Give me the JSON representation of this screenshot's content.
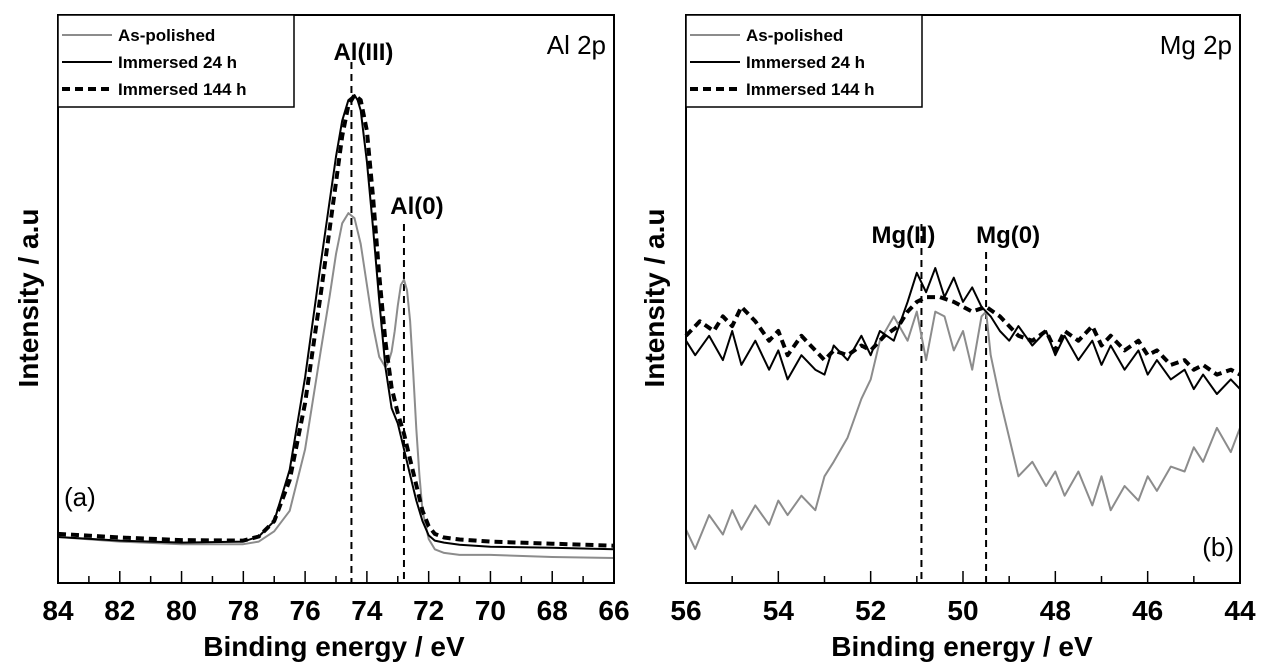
{
  "chart_data": [
    {
      "type": "line",
      "panel_label": "(a)",
      "title": "Al 2p",
      "xlabel": "Binding energy / eV",
      "ylabel": "Intensity / a.u",
      "xlim": [
        84,
        66
      ],
      "x_reversed": true,
      "ylim": [
        0,
        1
      ],
      "x_ticks": [
        84,
        82,
        80,
        78,
        76,
        74,
        72,
        70,
        68,
        66
      ],
      "x_minor_step": 1,
      "y_ticks_labeled": false,
      "grid": false,
      "legend_position": "top-left",
      "legend": [
        "As-polished",
        "Immersed 24 h",
        "Immersed 144 h"
      ],
      "reference_lines": [
        {
          "label": "Al(III)",
          "x": 74.5
        },
        {
          "label": "Al(0)",
          "x": 72.8
        }
      ],
      "series": [
        {
          "name": "As-polished",
          "style": "solid",
          "color": "#8c8c8c",
          "x": [
            84,
            82,
            80,
            78,
            77.5,
            77,
            76.5,
            76,
            75.5,
            75.2,
            75,
            74.8,
            74.6,
            74.4,
            74.2,
            74,
            73.8,
            73.6,
            73.4,
            73.3,
            73.2,
            73.1,
            73,
            72.9,
            72.8,
            72.7,
            72.6,
            72.5,
            72.4,
            72.3,
            72.2,
            72,
            71.8,
            71.5,
            71,
            70,
            68,
            66
          ],
          "y": [
            0.069,
            0.06,
            0.055,
            0.055,
            0.06,
            0.08,
            0.12,
            0.24,
            0.43,
            0.54,
            0.62,
            0.68,
            0.7,
            0.69,
            0.64,
            0.56,
            0.48,
            0.42,
            0.4,
            0.41,
            0.43,
            0.47,
            0.52,
            0.56,
            0.57,
            0.55,
            0.49,
            0.39,
            0.28,
            0.19,
            0.12,
            0.065,
            0.045,
            0.038,
            0.034,
            0.034,
            0.03,
            0.028
          ]
        },
        {
          "name": "Immersed 24 h",
          "style": "solid",
          "color": "#000000",
          "x": [
            84,
            82,
            80,
            78,
            77.5,
            77,
            76.5,
            76,
            75.5,
            75,
            74.8,
            74.6,
            74.4,
            74.3,
            74.2,
            74,
            73.8,
            73.6,
            73.4,
            73.2,
            73,
            72.8,
            72.6,
            72.4,
            72.2,
            72,
            71.8,
            71.5,
            71,
            70,
            68,
            66
          ],
          "y": [
            0.069,
            0.062,
            0.058,
            0.06,
            0.07,
            0.1,
            0.2,
            0.38,
            0.6,
            0.81,
            0.88,
            0.92,
            0.93,
            0.92,
            0.9,
            0.8,
            0.67,
            0.53,
            0.4,
            0.32,
            0.29,
            0.24,
            0.19,
            0.14,
            0.1,
            0.072,
            0.062,
            0.058,
            0.054,
            0.05,
            0.048,
            0.045
          ]
        },
        {
          "name": "Immersed 144 h",
          "style": "dashed",
          "color": "#000000",
          "x": [
            84,
            82,
            80,
            78,
            77.5,
            77,
            76.5,
            76,
            75.5,
            75,
            74.8,
            74.6,
            74.4,
            74.2,
            74,
            73.8,
            73.6,
            73.4,
            73.2,
            73,
            72.8,
            72.6,
            72.4,
            72.2,
            72,
            71.8,
            71.5,
            71,
            70,
            68,
            66
          ],
          "y": [
            0.075,
            0.068,
            0.063,
            0.062,
            0.07,
            0.1,
            0.18,
            0.33,
            0.54,
            0.76,
            0.85,
            0.91,
            0.93,
            0.92,
            0.86,
            0.73,
            0.58,
            0.45,
            0.36,
            0.31,
            0.27,
            0.22,
            0.17,
            0.12,
            0.09,
            0.075,
            0.068,
            0.064,
            0.06,
            0.056,
            0.052
          ]
        }
      ]
    },
    {
      "type": "line",
      "panel_label": "(b)",
      "title": "Mg 2p",
      "xlabel": "Binding energy / eV",
      "ylabel": "Intensity / a.u",
      "xlim": [
        56,
        44
      ],
      "x_reversed": true,
      "ylim": [
        0,
        1
      ],
      "x_ticks": [
        56,
        54,
        52,
        50,
        48,
        46,
        44
      ],
      "x_minor_step": 1,
      "y_ticks_labeled": false,
      "grid": false,
      "legend_position": "top-left",
      "legend": [
        "As-polished",
        "Immersed 24 h",
        "Immersed 144 h"
      ],
      "reference_lines": [
        {
          "label": "Mg(II)",
          "x": 50.9
        },
        {
          "label": "Mg(0)",
          "x": 49.5
        }
      ],
      "series": [
        {
          "name": "As-polished",
          "style": "solid",
          "color": "#8c8c8c",
          "x": [
            56,
            55.8,
            55.5,
            55.2,
            55,
            54.8,
            54.5,
            54.2,
            54,
            53.8,
            53.5,
            53.2,
            53,
            52.8,
            52.5,
            52.2,
            52,
            51.8,
            51.5,
            51.2,
            51,
            50.8,
            50.6,
            50.4,
            50.2,
            50,
            49.8,
            49.6,
            49.5,
            49.4,
            49.2,
            49,
            48.8,
            48.5,
            48.2,
            48,
            47.8,
            47.5,
            47.2,
            47,
            46.8,
            46.5,
            46.2,
            46,
            45.8,
            45.5,
            45.2,
            45,
            44.8,
            44.5,
            44.2,
            44
          ],
          "y": [
            0.11,
            0.07,
            0.14,
            0.1,
            0.15,
            0.11,
            0.16,
            0.12,
            0.17,
            0.14,
            0.18,
            0.15,
            0.22,
            0.25,
            0.3,
            0.38,
            0.42,
            0.5,
            0.55,
            0.5,
            0.56,
            0.46,
            0.56,
            0.55,
            0.48,
            0.52,
            0.44,
            0.55,
            0.56,
            0.47,
            0.38,
            0.3,
            0.22,
            0.25,
            0.2,
            0.23,
            0.18,
            0.23,
            0.16,
            0.22,
            0.15,
            0.2,
            0.17,
            0.22,
            0.19,
            0.24,
            0.23,
            0.28,
            0.25,
            0.32,
            0.27,
            0.32
          ]
        },
        {
          "name": "Immersed 24 h",
          "style": "solid",
          "color": "#000000",
          "x": [
            56,
            55.8,
            55.5,
            55.2,
            55,
            54.8,
            54.5,
            54.2,
            54,
            53.8,
            53.5,
            53.2,
            53,
            52.8,
            52.5,
            52.2,
            52,
            51.8,
            51.5,
            51.2,
            51,
            50.8,
            50.6,
            50.4,
            50.2,
            50,
            49.8,
            49.6,
            49.4,
            49.2,
            49,
            48.8,
            48.5,
            48.2,
            48,
            47.8,
            47.5,
            47.2,
            47,
            46.8,
            46.5,
            46.2,
            46,
            45.8,
            45.5,
            45.2,
            45,
            44.8,
            44.5,
            44.2,
            44
          ],
          "y": [
            0.5,
            0.47,
            0.51,
            0.46,
            0.52,
            0.45,
            0.5,
            0.44,
            0.48,
            0.42,
            0.47,
            0.44,
            0.43,
            0.49,
            0.46,
            0.51,
            0.47,
            0.52,
            0.5,
            0.58,
            0.64,
            0.6,
            0.65,
            0.59,
            0.63,
            0.58,
            0.61,
            0.57,
            0.55,
            0.52,
            0.5,
            0.53,
            0.49,
            0.52,
            0.47,
            0.51,
            0.46,
            0.5,
            0.45,
            0.49,
            0.44,
            0.48,
            0.43,
            0.46,
            0.42,
            0.44,
            0.4,
            0.43,
            0.39,
            0.42,
            0.4
          ]
        },
        {
          "name": "Immersed 144 h",
          "style": "dashed",
          "color": "#000000",
          "x": [
            56,
            55.7,
            55.4,
            55.2,
            55,
            54.8,
            54.5,
            54.2,
            54,
            53.8,
            53.5,
            53.2,
            53,
            52.8,
            52.5,
            52.2,
            52,
            51.7,
            51.4,
            51.2,
            51,
            50.8,
            50.5,
            50.2,
            50,
            49.8,
            49.5,
            49.2,
            49,
            48.8,
            48.5,
            48.2,
            48,
            47.8,
            47.5,
            47.2,
            47,
            46.8,
            46.5,
            46.2,
            46,
            45.8,
            45.5,
            45.2,
            45,
            44.8,
            44.5,
            44.2,
            44
          ],
          "y": [
            0.51,
            0.54,
            0.52,
            0.55,
            0.53,
            0.57,
            0.54,
            0.5,
            0.52,
            0.47,
            0.51,
            0.48,
            0.46,
            0.48,
            0.47,
            0.49,
            0.48,
            0.51,
            0.53,
            0.56,
            0.58,
            0.59,
            0.59,
            0.58,
            0.57,
            0.56,
            0.57,
            0.55,
            0.53,
            0.51,
            0.5,
            0.52,
            0.48,
            0.52,
            0.5,
            0.53,
            0.49,
            0.51,
            0.48,
            0.5,
            0.47,
            0.48,
            0.45,
            0.46,
            0.44,
            0.45,
            0.43,
            0.44,
            0.43
          ]
        }
      ]
    }
  ]
}
